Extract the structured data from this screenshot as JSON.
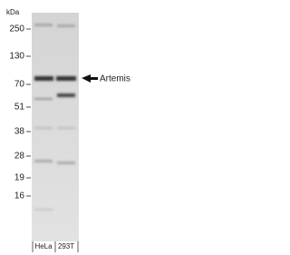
{
  "unit_label": "kDa",
  "markers": [
    250,
    130,
    70,
    51,
    38,
    28,
    19,
    16
  ],
  "band_label": "Artemis",
  "lanes": [
    "HeLa",
    "293T"
  ]
}
